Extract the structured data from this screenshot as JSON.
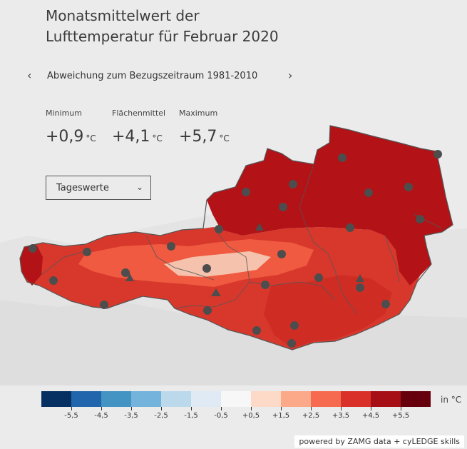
{
  "title_line1": "Monatsmittelwert der",
  "title_line2": "Lufttemperatur für Februar 2020",
  "nav": {
    "prev_icon": "chevron-left-icon",
    "next_icon": "chevron-right-icon",
    "prev_glyph": "‹",
    "next_glyph": "›",
    "label": "Abweichung zum Bezugszeitraum 1981-2010"
  },
  "stats": {
    "min": {
      "label": "Minimum",
      "value": "+0,9",
      "unit": "°C"
    },
    "mean": {
      "label": "Flächenmittel",
      "value": "+4,1",
      "unit": "°C"
    },
    "max": {
      "label": "Maximum",
      "value": "+5,7",
      "unit": "°C"
    }
  },
  "dropdown": {
    "selected": "Tageswerte",
    "icon": "chevron-down-icon",
    "glyph": "⌄"
  },
  "legend": {
    "colors": [
      "#053061",
      "#2166ac",
      "#4393c3",
      "#74b3dc",
      "#bcd9ec",
      "#dfeaf5",
      "#f7f7f7",
      "#fdd9c7",
      "#fca98a",
      "#f66b4f",
      "#d9312a",
      "#a50f15",
      "#67000d"
    ],
    "ticks": [
      "-5,5",
      "-4,5",
      "-3,5",
      "-2,5",
      "-1,5",
      "-0,5",
      "+0,5",
      "+1,5",
      "+2,5",
      "+3,5",
      "+4,5",
      "+5,5"
    ],
    "unit": "in °C"
  },
  "credit": "powered by ZAMG data + cyLEDGE skills",
  "map_colors": {
    "dark_red": "#b31217",
    "mid_red": "#d8382c",
    "light_red": "#ef5a40",
    "pale": "#f5c2ad",
    "station": "#4d4d4d",
    "border": "#555555"
  }
}
